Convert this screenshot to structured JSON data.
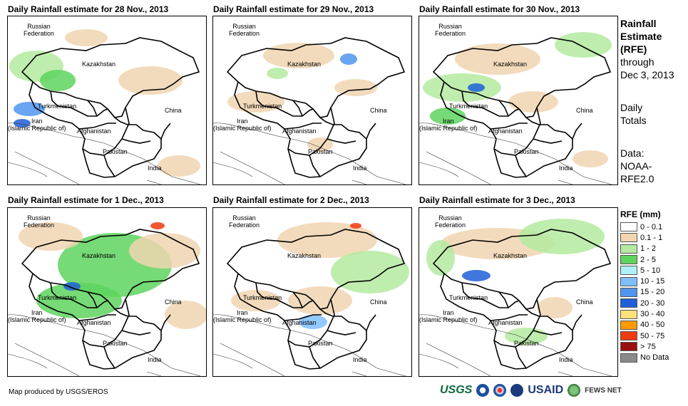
{
  "panels": [
    {
      "title": "Daily Rainfall estimate for 28 Nov., 2013"
    },
    {
      "title": "Daily Rainfall estimate for 29 Nov., 2013"
    },
    {
      "title": "Daily Rainfall estimate for 30 Nov., 2013"
    },
    {
      "title": "Daily Rainfall estimate for 1 Dec., 2013"
    },
    {
      "title": "Daily Rainfall estimate for 2 Dec., 2013"
    },
    {
      "title": "Daily Rainfall estimate for 3 Dec., 2013"
    }
  ],
  "map_labels": {
    "russia_1": "Russian",
    "russia_2": "Federation",
    "kazakhstan": "Kazakhstan",
    "turkmenistan": "Turkmenistan",
    "iran_1": "Iran",
    "iran_2": "(Islamic Republic of)",
    "afghanistan": "Afghanistan",
    "pakistan": "Pakistan",
    "china": "China",
    "india": "India"
  },
  "sidebar": {
    "title_1": "Rainfall",
    "title_2": "Estimate",
    "title_3": "(RFE)",
    "through": "through",
    "date": "Dec 3, 2013",
    "daily": "Daily",
    "totals": "Totals",
    "data_label": "Data:",
    "data_source_1": "NOAA-",
    "data_source_2": "RFE2.0"
  },
  "legend": {
    "title": "RFE (mm)",
    "items": [
      {
        "label": "0 - 0.1",
        "color": "#ffffff"
      },
      {
        "label": "0.1 - 1",
        "color": "#f0d5b0"
      },
      {
        "label": "1 - 2",
        "color": "#b4eaa0"
      },
      {
        "label": "2 - 5",
        "color": "#5ed35e"
      },
      {
        "label": "5 - 10",
        "color": "#aef0f5"
      },
      {
        "label": "10 - 15",
        "color": "#7fbfff"
      },
      {
        "label": "15 - 20",
        "color": "#4f95f0"
      },
      {
        "label": "20 - 30",
        "color": "#1f5fd8"
      },
      {
        "label": "30 - 40",
        "color": "#ffe27a"
      },
      {
        "label": "40 - 50",
        "color": "#ff9a00"
      },
      {
        "label": "50 - 75",
        "color": "#f03a10"
      },
      {
        "label": "> 75",
        "color": "#9a1010"
      },
      {
        "label": "No Data",
        "color": "#8a8a8a"
      }
    ]
  },
  "footer": {
    "credit": "Map produced by USGS/EROS"
  },
  "logos": {
    "usgs": "USGS",
    "usaid": "USAID",
    "fews": "FEWS NET"
  }
}
